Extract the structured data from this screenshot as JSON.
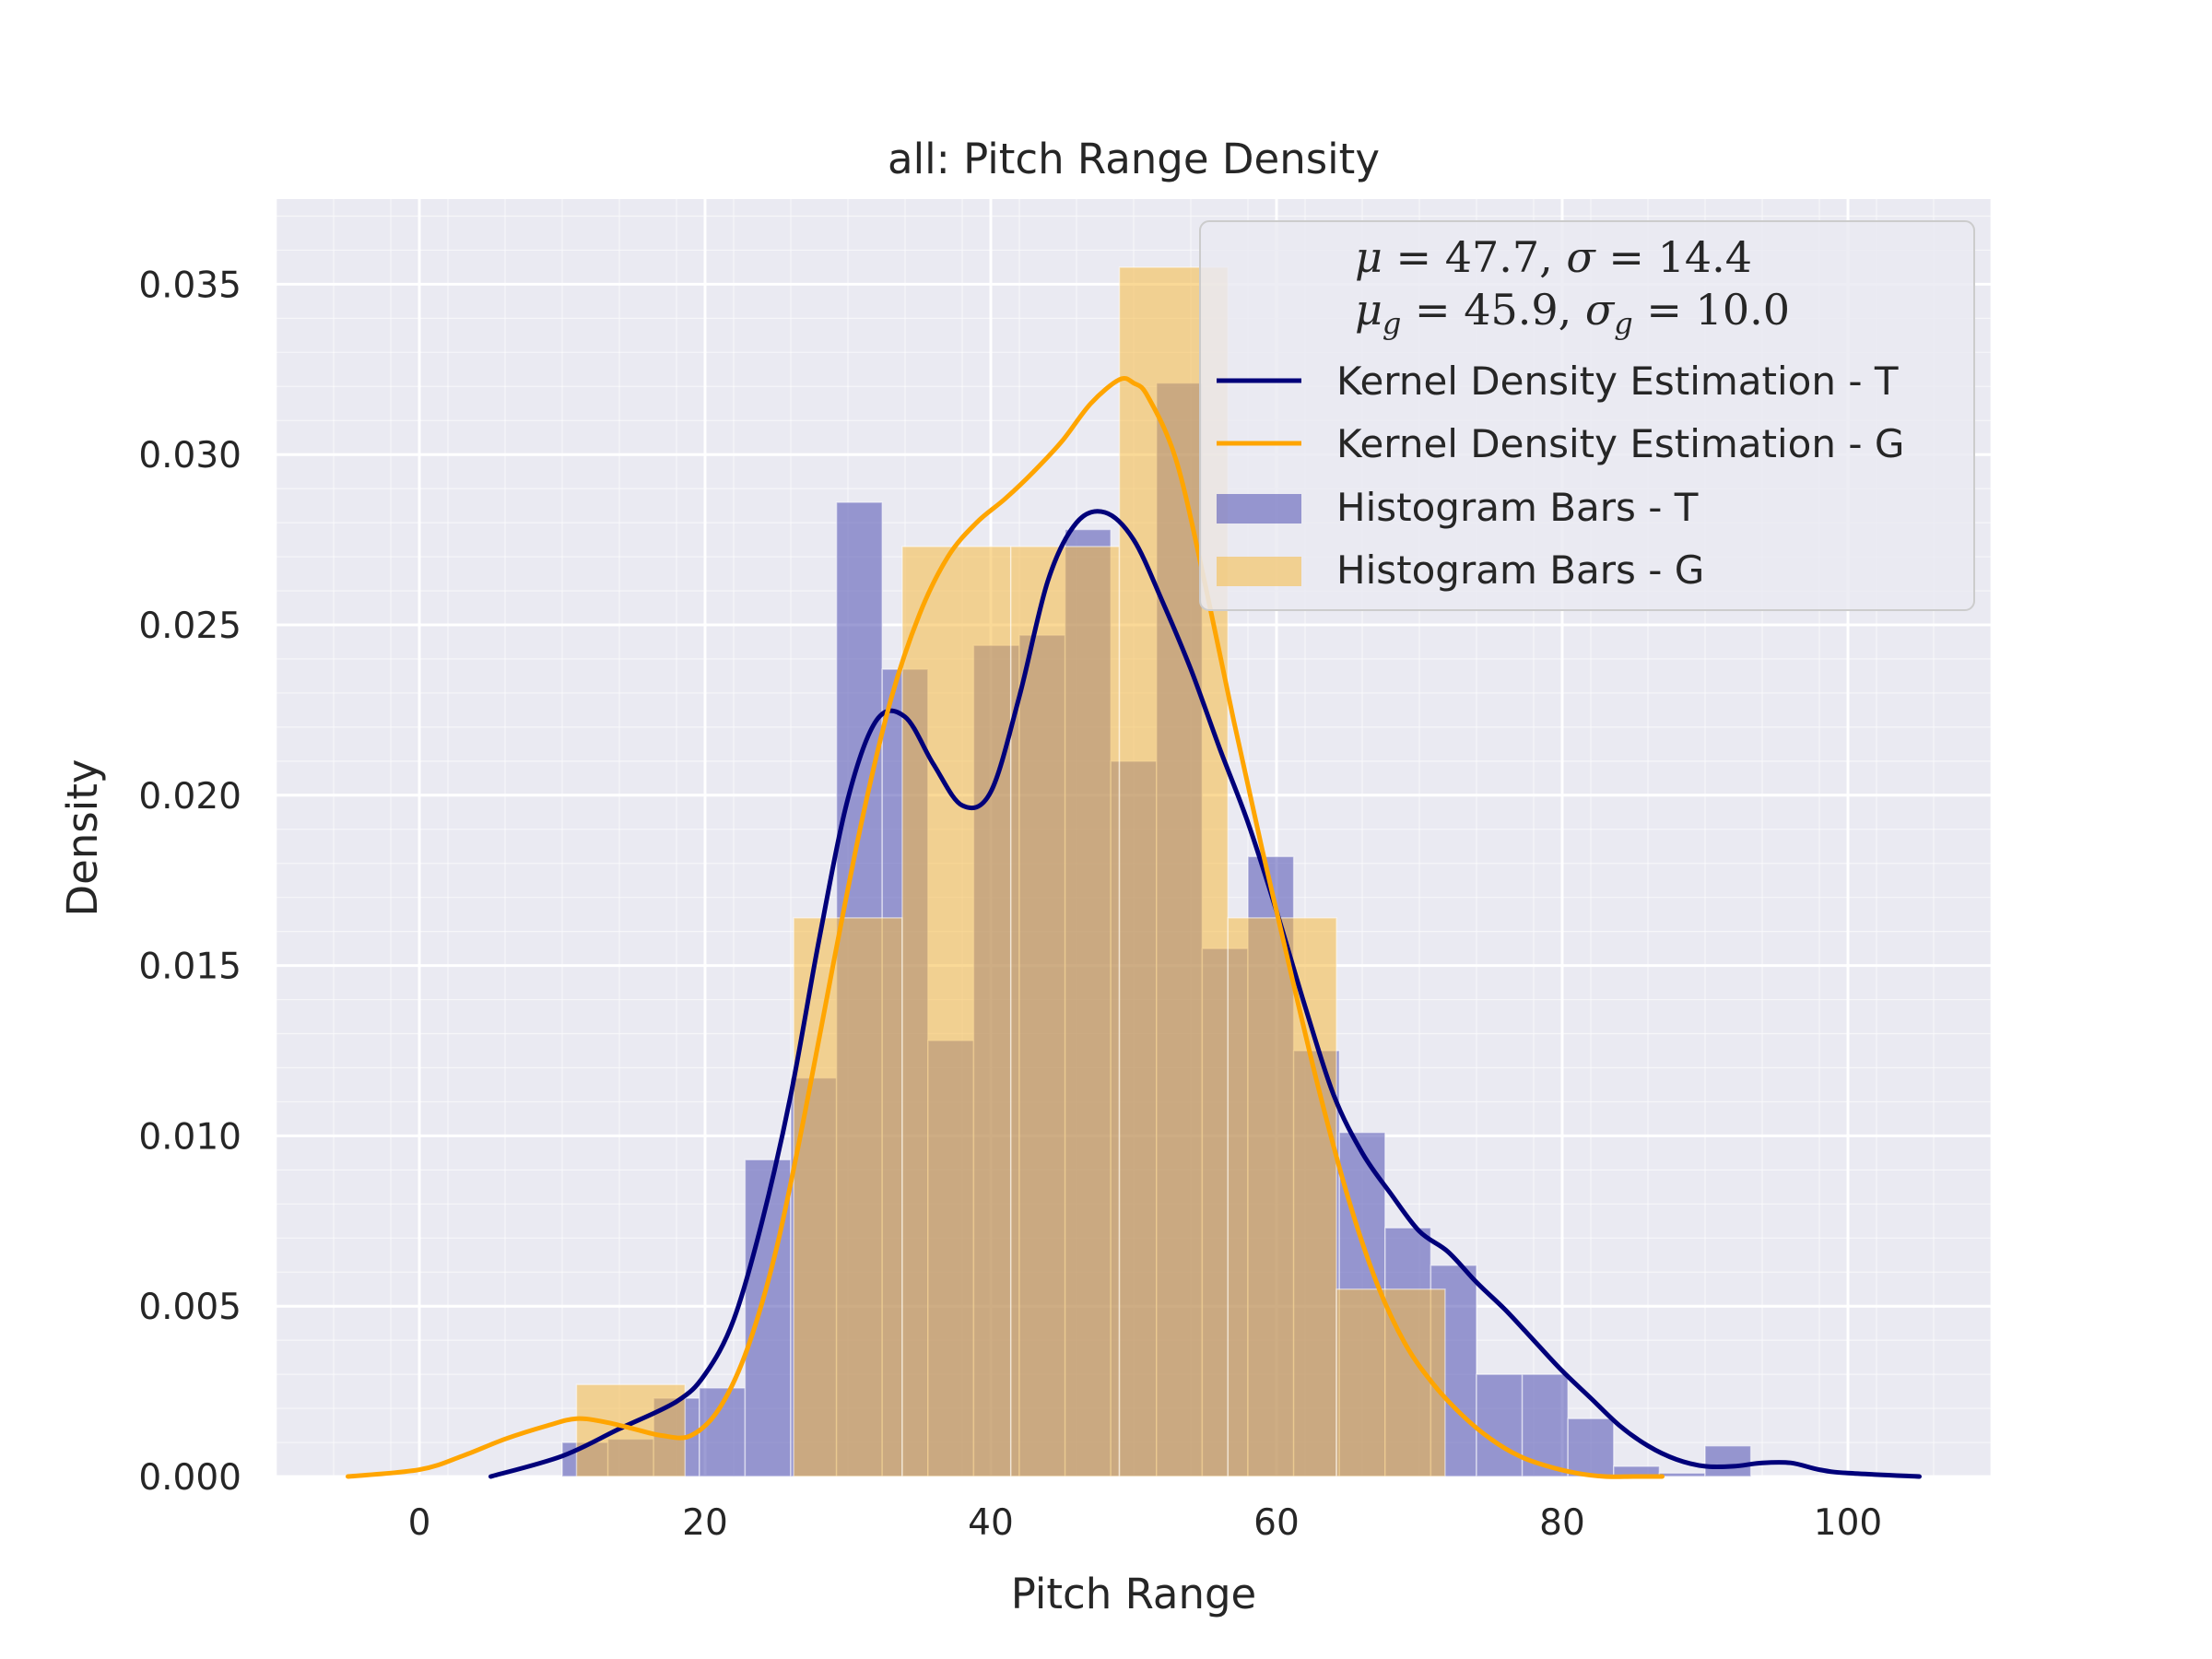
{
  "chart_data": {
    "type": "histogram_kde",
    "title": "all: Pitch Range Density",
    "xlabel": "Pitch Range",
    "ylabel": "Density",
    "xlim": [
      -10,
      110
    ],
    "ylim": [
      0,
      0.0375
    ],
    "xticks": [
      0,
      20,
      40,
      60,
      80,
      100
    ],
    "xtick_labels": [
      "0",
      "20",
      "40",
      "60",
      "80",
      "100"
    ],
    "yticks": [
      0.0,
      0.005,
      0.01,
      0.015,
      0.02,
      0.025,
      0.03,
      0.035
    ],
    "ytick_labels": [
      "0.000",
      "0.005",
      "0.010",
      "0.015",
      "0.020",
      "0.025",
      "0.030",
      "0.035"
    ],
    "grid": true,
    "legend_position": "top-right",
    "stats": {
      "t_mu": "47.7",
      "t_sigma": "14.4",
      "g_mu": "45.9",
      "g_sigma": "10.0"
    },
    "histograms": [
      {
        "name": "Histogram Bars - T",
        "color": "#5c5cb8",
        "alpha": 0.6,
        "bin_edges": [
          10,
          13.2,
          16.4,
          19.6,
          22.8,
          26.0,
          29.2,
          32.4,
          35.6,
          38.8,
          42.0,
          45.2,
          48.4,
          51.6,
          54.8,
          58.0,
          61.2,
          64.4,
          67.6,
          70.8,
          74.0,
          77.2,
          80.4,
          83.6,
          86.8,
          90.0,
          93.2,
          96.4
        ],
        "values": [
          0.001,
          0.0011,
          0.0023,
          0.0026,
          0.0093,
          0.0117,
          0.0286,
          0.0237,
          0.0128,
          0.0244,
          0.0247,
          0.0278,
          0.021,
          0.0321,
          0.0155,
          0.0182,
          0.0125,
          0.0101,
          0.0073,
          0.0062,
          0.003,
          0.003,
          0.0017,
          0.0003,
          0.0001,
          0.0009,
          0.0
        ]
      },
      {
        "name": "Histogram Bars - G",
        "color": "#f5b942",
        "alpha": 0.55,
        "bin_edges": [
          11,
          18.6,
          26.2,
          33.8,
          41.4,
          49.0,
          56.6,
          64.2,
          71.8
        ],
        "values": [
          0.0027,
          0.0,
          0.0164,
          0.0273,
          0.0273,
          0.0355,
          0.0164,
          0.0055
        ]
      }
    ],
    "kde": [
      {
        "name": "Kernel Density Estimation - T",
        "color": "#00007a",
        "x": [
          5,
          10,
          14,
          18,
          20,
          22,
          24,
          26,
          28,
          30,
          32,
          34,
          36,
          38,
          40,
          42,
          44,
          46,
          48,
          50,
          52,
          54,
          56,
          58,
          60,
          62,
          64,
          66,
          68,
          70,
          72,
          74,
          76,
          78,
          80,
          82,
          84,
          86,
          88,
          90,
          92,
          94,
          96,
          98,
          100,
          105
        ],
        "y": [
          0.0,
          0.0006,
          0.0014,
          0.0022,
          0.003,
          0.0046,
          0.0075,
          0.0112,
          0.0158,
          0.0199,
          0.0222,
          0.0223,
          0.0209,
          0.0197,
          0.0201,
          0.0229,
          0.0263,
          0.028,
          0.0283,
          0.0275,
          0.0257,
          0.0237,
          0.0214,
          0.0192,
          0.0166,
          0.0138,
          0.0112,
          0.0095,
          0.0083,
          0.0072,
          0.0066,
          0.0057,
          0.0049,
          0.004,
          0.0031,
          0.0023,
          0.0015,
          0.0009,
          0.0005,
          0.0003,
          0.0003,
          0.0004,
          0.0004,
          0.0002,
          0.0001,
          0.0
        ]
      },
      {
        "name": "Kernel Density Estimation - G",
        "color": "#ffa500",
        "x": [
          -5,
          0,
          3,
          6,
          9,
          11,
          13,
          15,
          17,
          19,
          21,
          23,
          25,
          27,
          29,
          31,
          33,
          35,
          37,
          39,
          41,
          43,
          45,
          47,
          49,
          50,
          51,
          53,
          55,
          57,
          59,
          61,
          63,
          65,
          67,
          69,
          71,
          73,
          75,
          77,
          79,
          81,
          83,
          85,
          87
        ],
        "y": [
          0.0,
          0.0002,
          0.0006,
          0.0011,
          0.0015,
          0.0017,
          0.0016,
          0.0014,
          0.0012,
          0.0012,
          0.002,
          0.0038,
          0.0067,
          0.0107,
          0.0151,
          0.0193,
          0.0228,
          0.0253,
          0.027,
          0.028,
          0.0287,
          0.0295,
          0.0304,
          0.0315,
          0.0322,
          0.0321,
          0.0317,
          0.0298,
          0.0262,
          0.0222,
          0.0184,
          0.0148,
          0.0113,
          0.0082,
          0.0057,
          0.0039,
          0.0027,
          0.0018,
          0.0011,
          0.0006,
          0.0003,
          0.0001,
          0.0,
          0.0,
          0.0
        ]
      }
    ],
    "legend_order": [
      "Kernel Density Estimation - T",
      "Kernel Density Estimation - G",
      "Histogram Bars - T",
      "Histogram Bars - G"
    ]
  }
}
